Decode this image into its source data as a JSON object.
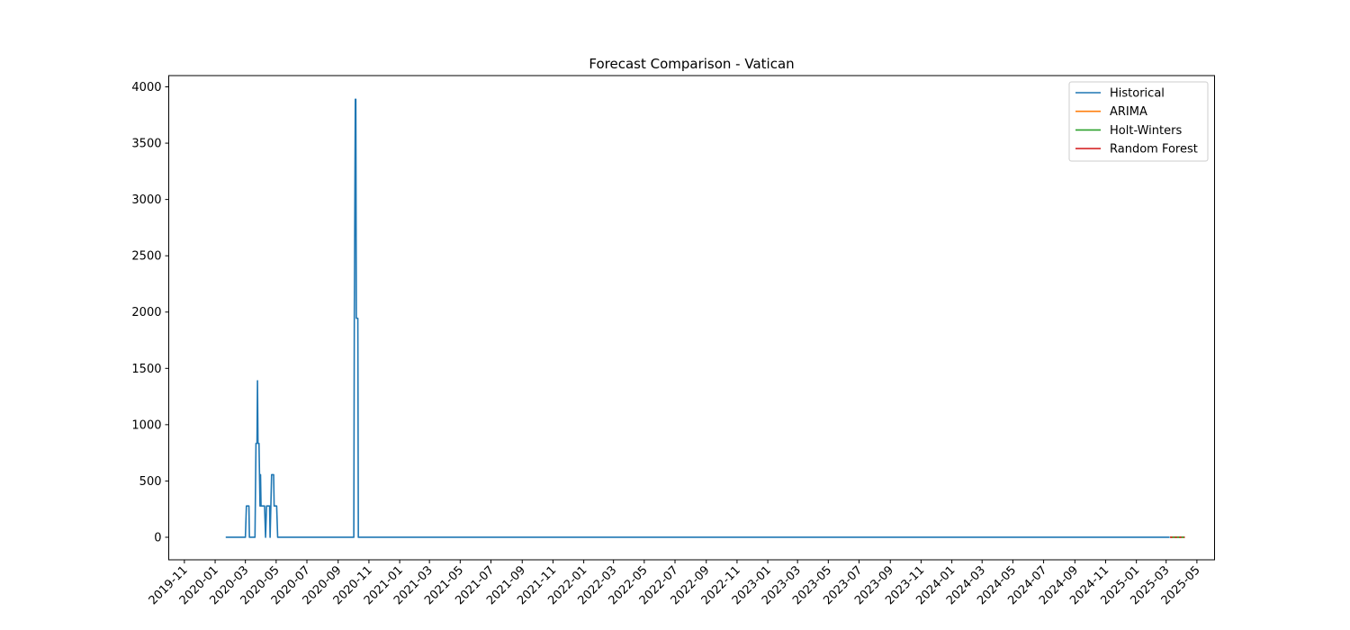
{
  "chart_data": {
    "type": "line",
    "title": "Forecast Comparison - Vatican",
    "xlabel": "",
    "ylabel": "",
    "x_axis": "date",
    "xlim": [
      "2019-10-01",
      "2025-06-05"
    ],
    "ylim": [
      -200,
      4100
    ],
    "yticks": [
      0,
      500,
      1000,
      1500,
      2000,
      2500,
      3000,
      3500,
      4000
    ],
    "xtick_labels": [
      "2019-11",
      "2020-01",
      "2020-03",
      "2020-05",
      "2020-07",
      "2020-09",
      "2020-11",
      "2021-01",
      "2021-03",
      "2021-05",
      "2021-07",
      "2021-09",
      "2021-11",
      "2022-01",
      "2022-03",
      "2022-05",
      "2022-07",
      "2022-09",
      "2022-11",
      "2023-01",
      "2023-03",
      "2023-05",
      "2023-07",
      "2023-09",
      "2023-11",
      "2024-01",
      "2024-03",
      "2024-05",
      "2024-07",
      "2024-09",
      "2024-11",
      "2025-01",
      "2025-03",
      "2025-05"
    ],
    "grid": false,
    "legend_position": "top-right",
    "series": [
      {
        "name": "Historical",
        "color": "#1f77b4",
        "points": [
          [
            "2020-01-22",
            0
          ],
          [
            "2020-03-01",
            0
          ],
          [
            "2020-03-03",
            278
          ],
          [
            "2020-03-08",
            278
          ],
          [
            "2020-03-09",
            0
          ],
          [
            "2020-03-20",
            0
          ],
          [
            "2020-03-22",
            834
          ],
          [
            "2020-03-24",
            834
          ],
          [
            "2020-03-25",
            1390
          ],
          [
            "2020-03-26",
            834
          ],
          [
            "2020-03-28",
            834
          ],
          [
            "2020-03-29",
            556
          ],
          [
            "2020-03-30",
            278
          ],
          [
            "2020-03-31",
            556
          ],
          [
            "2020-04-01",
            278
          ],
          [
            "2020-04-08",
            278
          ],
          [
            "2020-04-10",
            0
          ],
          [
            "2020-04-12",
            278
          ],
          [
            "2020-04-18",
            278
          ],
          [
            "2020-04-19",
            0
          ],
          [
            "2020-04-22",
            556
          ],
          [
            "2020-04-26",
            556
          ],
          [
            "2020-04-27",
            278
          ],
          [
            "2020-05-02",
            278
          ],
          [
            "2020-05-04",
            0
          ],
          [
            "2020-10-02",
            0
          ],
          [
            "2020-10-03",
            1945
          ],
          [
            "2020-10-05",
            3890
          ],
          [
            "2020-10-06",
            3890
          ],
          [
            "2020-10-07",
            1945
          ],
          [
            "2020-10-10",
            1945
          ],
          [
            "2020-10-11",
            0
          ],
          [
            "2025-03-08",
            0
          ]
        ]
      },
      {
        "name": "ARIMA",
        "color": "#ff7f0e",
        "points": [
          [
            "2025-03-09",
            0
          ],
          [
            "2025-04-07",
            0
          ]
        ]
      },
      {
        "name": "Holt-Winters",
        "color": "#2ca02c",
        "points": [
          [
            "2025-03-09",
            0
          ],
          [
            "2025-04-07",
            0
          ]
        ]
      },
      {
        "name": "Random Forest",
        "color": "#d62728",
        "dashed": true,
        "points": [
          [
            "2025-03-09",
            0
          ],
          [
            "2025-04-07",
            0
          ]
        ]
      }
    ]
  }
}
